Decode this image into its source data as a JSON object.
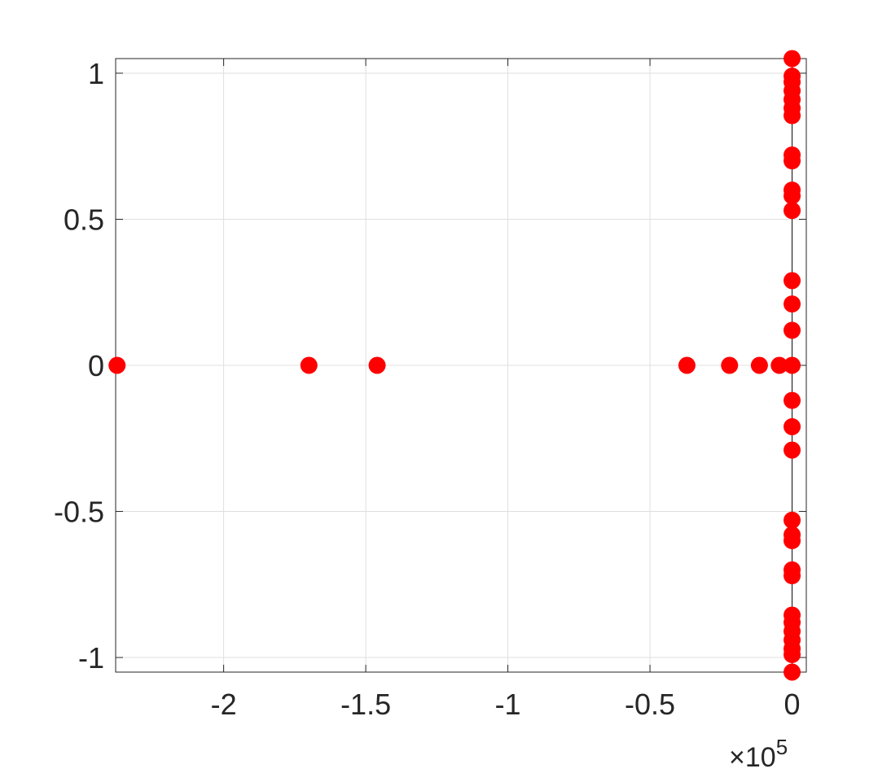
{
  "chart_data": {
    "type": "scatter",
    "title": "",
    "xlabel": "",
    "ylabel": "",
    "xlim": [
      -2.38,
      0.05
    ],
    "ylim": [
      -1.05,
      1.05
    ],
    "x_scale_label": {
      "base": "×10",
      "exponent": "5"
    },
    "grid": true,
    "xticks": [
      {
        "value": -2,
        "label": "-2"
      },
      {
        "value": -1.5,
        "label": "-1.5"
      },
      {
        "value": -1,
        "label": "-1"
      },
      {
        "value": -0.5,
        "label": "-0.5"
      },
      {
        "value": 0,
        "label": "0"
      }
    ],
    "yticks": [
      {
        "value": -1,
        "label": "-1"
      },
      {
        "value": -0.5,
        "label": "-0.5"
      },
      {
        "value": 0,
        "label": "0"
      },
      {
        "value": 0.5,
        "label": "0.5"
      },
      {
        "value": 1,
        "label": "1"
      }
    ],
    "colors": {
      "marker": "#ff0000",
      "axis": "#262626",
      "grid": "#dfdfdf"
    },
    "series": [
      {
        "points": [
          {
            "x": -2.375,
            "y": 0
          },
          {
            "x": -1.7,
            "y": 0
          },
          {
            "x": -1.46,
            "y": 0
          },
          {
            "x": -0.37,
            "y": 0
          },
          {
            "x": -0.22,
            "y": 0
          },
          {
            "x": -0.115,
            "y": 0
          },
          {
            "x": -0.045,
            "y": 0
          },
          {
            "x": 0,
            "y": 1.05
          },
          {
            "x": 0,
            "y": 0.99
          },
          {
            "x": 0,
            "y": 0.97
          },
          {
            "x": 0,
            "y": 0.94
          },
          {
            "x": 0,
            "y": 0.91
          },
          {
            "x": 0,
            "y": 0.88
          },
          {
            "x": 0,
            "y": 0.855
          },
          {
            "x": 0,
            "y": 0.72
          },
          {
            "x": 0,
            "y": 0.7
          },
          {
            "x": 0,
            "y": 0.6
          },
          {
            "x": 0,
            "y": 0.58
          },
          {
            "x": 0,
            "y": 0.53
          },
          {
            "x": 0,
            "y": 0.29
          },
          {
            "x": 0,
            "y": 0.21
          },
          {
            "x": 0,
            "y": 0.12
          },
          {
            "x": 0,
            "y": 0
          },
          {
            "x": 0,
            "y": -0.12
          },
          {
            "x": 0,
            "y": -0.21
          },
          {
            "x": 0,
            "y": -0.29
          },
          {
            "x": 0,
            "y": -0.53
          },
          {
            "x": 0,
            "y": -0.58
          },
          {
            "x": 0,
            "y": -0.6
          },
          {
            "x": 0,
            "y": -0.7
          },
          {
            "x": 0,
            "y": -0.72
          },
          {
            "x": 0,
            "y": -0.855
          },
          {
            "x": 0,
            "y": -0.88
          },
          {
            "x": 0,
            "y": -0.91
          },
          {
            "x": 0,
            "y": -0.94
          },
          {
            "x": 0,
            "y": -0.97
          },
          {
            "x": 0,
            "y": -0.99
          },
          {
            "x": 0,
            "y": -1.05
          }
        ]
      }
    ]
  }
}
